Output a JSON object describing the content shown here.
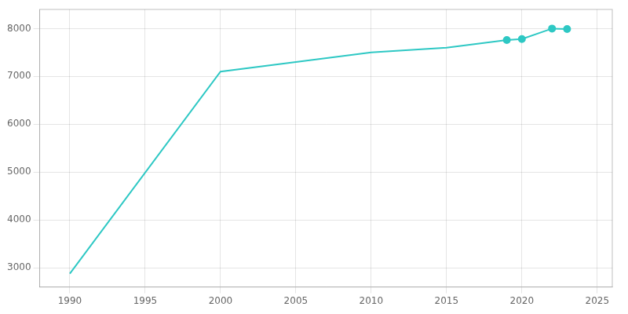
{
  "chart_data": {
    "type": "line",
    "x": [
      1990,
      2000,
      2005,
      2010,
      2015,
      2019,
      2020,
      2022,
      2023
    ],
    "series": [
      {
        "values": [
          2880,
          7100,
          7300,
          7500,
          7600,
          7760,
          7780,
          8000,
          7990
        ],
        "color": "#2ec8c4",
        "marker": "none",
        "line_style": "solid"
      },
      {
        "type": "scatter",
        "x": [
          2019,
          2020,
          2022,
          2023
        ],
        "values": [
          7760,
          7780,
          8000,
          7990
        ],
        "color": "#2ec8c4",
        "marker": "circle"
      }
    ],
    "xlim": [
      1988,
      2026
    ],
    "ylim": [
      2600,
      8400
    ],
    "xticks": [
      1990,
      1995,
      2000,
      2005,
      2010,
      2015,
      2020,
      2025
    ],
    "yticks": [
      3000,
      4000,
      5000,
      6000,
      7000,
      8000
    ],
    "grid": true
  }
}
